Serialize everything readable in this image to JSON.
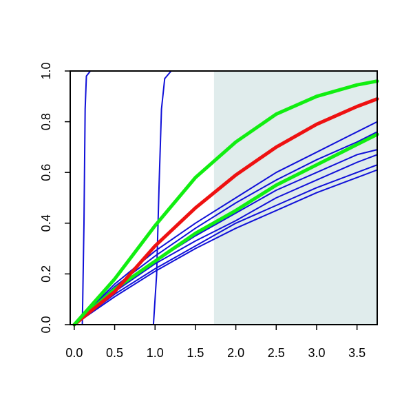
{
  "chart_data": {
    "type": "line",
    "title": "",
    "xlabel": "",
    "ylabel": "",
    "xlim": [
      -0.05,
      3.75
    ],
    "ylim": [
      0,
      1.0
    ],
    "x_ticks": [
      "0.0",
      "0.5",
      "1.0",
      "1.5",
      "2.0",
      "2.5",
      "3.0",
      "3.5"
    ],
    "y_ticks": [
      "0.0",
      "0.2",
      "0.4",
      "0.6",
      "0.8",
      "1.0"
    ],
    "shaded_region": {
      "x_from": 1.73,
      "x_to": 3.75,
      "color": "#e0ecec"
    },
    "colors": {
      "blue": "#1010d8",
      "red": "#ee1111",
      "green": "#11ee11"
    },
    "series": [
      {
        "color": "blue",
        "width": 2,
        "x": [
          0,
          0.1,
          0.12,
          0.135,
          0.15,
          0.2,
          3.75
        ],
        "y": [
          0,
          0,
          0.4,
          0.85,
          0.98,
          1.0,
          1.0
        ]
      },
      {
        "color": "blue",
        "width": 2,
        "x": [
          0,
          0.98,
          1.02,
          1.05,
          1.08,
          1.12,
          1.2,
          3.75
        ],
        "y": [
          0,
          0,
          0.2,
          0.55,
          0.85,
          0.97,
          1.0,
          1.0
        ]
      },
      {
        "color": "blue",
        "width": 2,
        "x": [
          0,
          0.5,
          1.0,
          1.5,
          2.0,
          2.5,
          3.0,
          3.5,
          3.75
        ],
        "y": [
          0,
          0.13,
          0.25,
          0.35,
          0.44,
          0.53,
          0.6,
          0.67,
          0.69
        ]
      },
      {
        "color": "blue",
        "width": 2,
        "x": [
          0,
          0.5,
          1.0,
          1.5,
          2.0,
          2.5,
          3.0,
          3.5,
          3.75
        ],
        "y": [
          0,
          0.15,
          0.27,
          0.38,
          0.48,
          0.57,
          0.65,
          0.72,
          0.76
        ]
      },
      {
        "color": "blue",
        "width": 2,
        "x": [
          0,
          0.5,
          1.0,
          1.5,
          2.0,
          2.5,
          3.0,
          3.5,
          3.75
        ],
        "y": [
          0,
          0.16,
          0.29,
          0.4,
          0.5,
          0.6,
          0.68,
          0.76,
          0.8
        ]
      },
      {
        "color": "blue",
        "width": 2,
        "x": [
          0,
          0.5,
          1.0,
          1.5,
          2.0,
          2.5,
          3.0,
          3.5,
          3.75
        ],
        "y": [
          0,
          0.11,
          0.21,
          0.3,
          0.38,
          0.45,
          0.52,
          0.58,
          0.61
        ]
      },
      {
        "color": "blue",
        "width": 2,
        "x": [
          0,
          0.5,
          1.0,
          1.5,
          2.0,
          2.5,
          3.0,
          3.5,
          3.75
        ],
        "y": [
          0,
          0.12,
          0.22,
          0.31,
          0.4,
          0.47,
          0.54,
          0.6,
          0.63
        ]
      },
      {
        "color": "blue",
        "width": 2,
        "x": [
          0,
          0.5,
          1.0,
          1.5,
          2.0,
          2.5,
          3.0,
          3.5,
          3.75
        ],
        "y": [
          0,
          0.13,
          0.24,
          0.33,
          0.41,
          0.5,
          0.57,
          0.64,
          0.67
        ]
      },
      {
        "color": "green",
        "width": 5,
        "x": [
          0,
          0.5,
          1.0,
          1.5,
          2.0,
          2.5,
          3.0,
          3.5,
          3.75
        ],
        "y": [
          0,
          0.14,
          0.25,
          0.36,
          0.45,
          0.55,
          0.63,
          0.71,
          0.75
        ]
      },
      {
        "color": "red",
        "width": 5,
        "x": [
          0,
          0.5,
          1.0,
          1.5,
          2.0,
          2.5,
          3.0,
          3.5,
          3.75
        ],
        "y": [
          0,
          0.13,
          0.31,
          0.46,
          0.59,
          0.7,
          0.79,
          0.86,
          0.89
        ]
      },
      {
        "color": "green",
        "width": 5,
        "x": [
          0,
          0.5,
          1.0,
          1.5,
          2.0,
          2.5,
          3.0,
          3.5,
          3.75
        ],
        "y": [
          0,
          0.18,
          0.39,
          0.58,
          0.72,
          0.83,
          0.9,
          0.945,
          0.96
        ]
      }
    ]
  }
}
